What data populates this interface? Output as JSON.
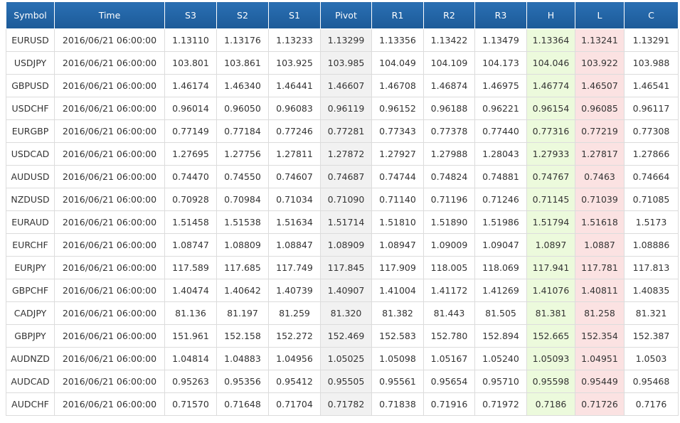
{
  "headers": [
    "Symbol",
    "Time",
    "S3",
    "S2",
    "S1",
    "Pivot",
    "R1",
    "R2",
    "R3",
    "H",
    "L",
    "C"
  ],
  "colors": {
    "header_bg": "#1c5a98",
    "pivot_bg": "#f1f1f1",
    "high_bg": "#ecfadc",
    "low_bg": "#fbe2e2",
    "border": "#dcdcdc"
  },
  "rows": [
    [
      "EURUSD",
      "2016/06/21 06:00:00",
      "1.13110",
      "1.13176",
      "1.13233",
      "1.13299",
      "1.13356",
      "1.13422",
      "1.13479",
      "1.13364",
      "1.13241",
      "1.13291"
    ],
    [
      "USDJPY",
      "2016/06/21 06:00:00",
      "103.801",
      "103.861",
      "103.925",
      "103.985",
      "104.049",
      "104.109",
      "104.173",
      "104.046",
      "103.922",
      "103.988"
    ],
    [
      "GBPUSD",
      "2016/06/21 06:00:00",
      "1.46174",
      "1.46340",
      "1.46441",
      "1.46607",
      "1.46708",
      "1.46874",
      "1.46975",
      "1.46774",
      "1.46507",
      "1.46541"
    ],
    [
      "USDCHF",
      "2016/06/21 06:00:00",
      "0.96014",
      "0.96050",
      "0.96083",
      "0.96119",
      "0.96152",
      "0.96188",
      "0.96221",
      "0.96154",
      "0.96085",
      "0.96117"
    ],
    [
      "EURGBP",
      "2016/06/21 06:00:00",
      "0.77149",
      "0.77184",
      "0.77246",
      "0.77281",
      "0.77343",
      "0.77378",
      "0.77440",
      "0.77316",
      "0.77219",
      "0.77308"
    ],
    [
      "USDCAD",
      "2016/06/21 06:00:00",
      "1.27695",
      "1.27756",
      "1.27811",
      "1.27872",
      "1.27927",
      "1.27988",
      "1.28043",
      "1.27933",
      "1.27817",
      "1.27866"
    ],
    [
      "AUDUSD",
      "2016/06/21 06:00:00",
      "0.74470",
      "0.74550",
      "0.74607",
      "0.74687",
      "0.74744",
      "0.74824",
      "0.74881",
      "0.74767",
      "0.7463",
      "0.74664"
    ],
    [
      "NZDUSD",
      "2016/06/21 06:00:00",
      "0.70928",
      "0.70984",
      "0.71034",
      "0.71090",
      "0.71140",
      "0.71196",
      "0.71246",
      "0.71145",
      "0.71039",
      "0.71085"
    ],
    [
      "EURAUD",
      "2016/06/21 06:00:00",
      "1.51458",
      "1.51538",
      "1.51634",
      "1.51714",
      "1.51810",
      "1.51890",
      "1.51986",
      "1.51794",
      "1.51618",
      "1.5173"
    ],
    [
      "EURCHF",
      "2016/06/21 06:00:00",
      "1.08747",
      "1.08809",
      "1.08847",
      "1.08909",
      "1.08947",
      "1.09009",
      "1.09047",
      "1.0897",
      "1.0887",
      "1.08886"
    ],
    [
      "EURJPY",
      "2016/06/21 06:00:00",
      "117.589",
      "117.685",
      "117.749",
      "117.845",
      "117.909",
      "118.005",
      "118.069",
      "117.941",
      "117.781",
      "117.813"
    ],
    [
      "GBPCHF",
      "2016/06/21 06:00:00",
      "1.40474",
      "1.40642",
      "1.40739",
      "1.40907",
      "1.41004",
      "1.41172",
      "1.41269",
      "1.41076",
      "1.40811",
      "1.40835"
    ],
    [
      "CADJPY",
      "2016/06/21 06:00:00",
      "81.136",
      "81.197",
      "81.259",
      "81.320",
      "81.382",
      "81.443",
      "81.505",
      "81.381",
      "81.258",
      "81.321"
    ],
    [
      "GBPJPY",
      "2016/06/21 06:00:00",
      "151.961",
      "152.158",
      "152.272",
      "152.469",
      "152.583",
      "152.780",
      "152.894",
      "152.665",
      "152.354",
      "152.387"
    ],
    [
      "AUDNZD",
      "2016/06/21 06:00:00",
      "1.04814",
      "1.04883",
      "1.04956",
      "1.05025",
      "1.05098",
      "1.05167",
      "1.05240",
      "1.05093",
      "1.04951",
      "1.0503"
    ],
    [
      "AUDCAD",
      "2016/06/21 06:00:00",
      "0.95263",
      "0.95356",
      "0.95412",
      "0.95505",
      "0.95561",
      "0.95654",
      "0.95710",
      "0.95598",
      "0.95449",
      "0.95468"
    ],
    [
      "AUDCHF",
      "2016/06/21 06:00:00",
      "0.71570",
      "0.71648",
      "0.71704",
      "0.71782",
      "0.71838",
      "0.71916",
      "0.71972",
      "0.7186",
      "0.71726",
      "0.7176"
    ]
  ]
}
